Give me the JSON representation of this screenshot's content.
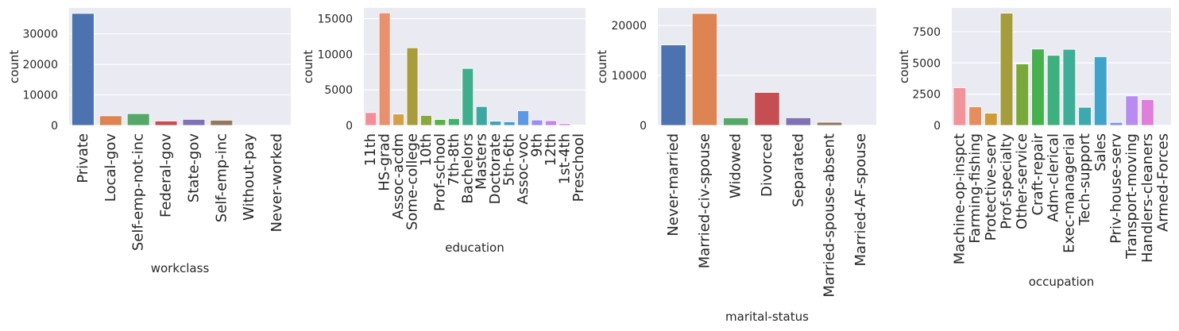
{
  "chart_data": [
    {
      "type": "bar",
      "xlabel": "workclass",
      "ylabel": "count",
      "ylim": [
        0,
        38500
      ],
      "yticks": [
        0,
        10000,
        20000,
        30000
      ],
      "ytick_labels": [
        "0",
        "10000",
        "20000",
        "30000"
      ],
      "grid": true,
      "categories": [
        "Private",
        "Local-gov",
        "Self-emp-not-inc",
        "Federal-gov",
        "State-gov",
        "Self-emp-inc",
        "Without-pay",
        "Never-worked"
      ],
      "values": [
        36700,
        3140,
        3860,
        1430,
        1980,
        1700,
        20,
        10
      ],
      "colors": [
        "#4c72b0",
        "#dd8452",
        "#55a868",
        "#c44e52",
        "#8172b3",
        "#937860",
        "#da8bc3",
        "#8c8c8c"
      ]
    },
    {
      "type": "bar",
      "xlabel": "education",
      "ylabel": "count",
      "ylim": [
        0,
        16500
      ],
      "yticks": [
        0,
        5000,
        10000,
        15000
      ],
      "ytick_labels": [
        "0",
        "5000",
        "10000",
        "15000"
      ],
      "grid": true,
      "categories": [
        "11th",
        "HS-grad",
        "Assoc-acdm",
        "Some-college",
        "10th",
        "Prof-school",
        "7th-8th",
        "Bachelors",
        "Masters",
        "Doctorate",
        "5th-6th",
        "Assoc-voc",
        "9th",
        "12th",
        "1st-4th",
        "Preschool"
      ],
      "values": [
        1800,
        15800,
        1600,
        10900,
        1400,
        830,
        960,
        8000,
        2650,
        590,
        510,
        2060,
        760,
        660,
        250,
        80
      ],
      "colors": [
        "#f28e9a",
        "#e9906f",
        "#d2a14a",
        "#a89c3c",
        "#8aa83c",
        "#5cb048",
        "#43b06e",
        "#3fae8d",
        "#3da89f",
        "#3ea4b0",
        "#42a0c4",
        "#5f98e2",
        "#9b8ef0",
        "#c584ec",
        "#e07fd8",
        "#ef86b8"
      ]
    },
    {
      "type": "bar",
      "xlabel": "marital-status",
      "ylabel": "count",
      "ylim": [
        0,
        23500
      ],
      "yticks": [
        0,
        10000,
        20000
      ],
      "ytick_labels": [
        "0",
        "10000",
        "20000"
      ],
      "grid": true,
      "categories": [
        "Never-married",
        "Married-civ-spouse",
        "Widowed",
        "Divorced",
        "Separated",
        "Married-spouse-absent",
        "Married-AF-spouse"
      ],
      "values": [
        16100,
        22400,
        1520,
        6600,
        1530,
        630,
        40
      ],
      "colors": [
        "#4c72b0",
        "#dd8452",
        "#55a868",
        "#c44e52",
        "#8172b3",
        "#937860",
        "#da8bc3"
      ]
    },
    {
      "type": "bar",
      "xlabel": "occupation",
      "ylabel": "count",
      "ylim": [
        0,
        9400
      ],
      "yticks": [
        0,
        2500,
        5000,
        7500
      ],
      "ytick_labels": [
        "0",
        "2500",
        "5000",
        "7500"
      ],
      "grid": true,
      "categories": [
        "Machine-op-inspct",
        "Farming-fishing",
        "Protective-serv",
        "Prof-specialty",
        "Other-service",
        "Craft-repair",
        "Adm-clerical",
        "Exec-managerial",
        "Tech-support",
        "Sales",
        "Priv-house-serv",
        "Transport-moving",
        "Handlers-cleaners",
        "Armed-Forces"
      ],
      "values": [
        3020,
        1490,
        980,
        8980,
        4920,
        6110,
        5610,
        6090,
        1450,
        5500,
        240,
        2360,
        2070,
        15
      ],
      "colors": [
        "#f0939a",
        "#e58d5d",
        "#cf9b3a",
        "#a59c3b",
        "#79a93a",
        "#46b14d",
        "#3eb07d",
        "#3eae98",
        "#3ca9ae",
        "#40a3c9",
        "#7f97ea",
        "#b88bf0",
        "#e07fdb",
        "#f07fb4"
      ]
    }
  ]
}
